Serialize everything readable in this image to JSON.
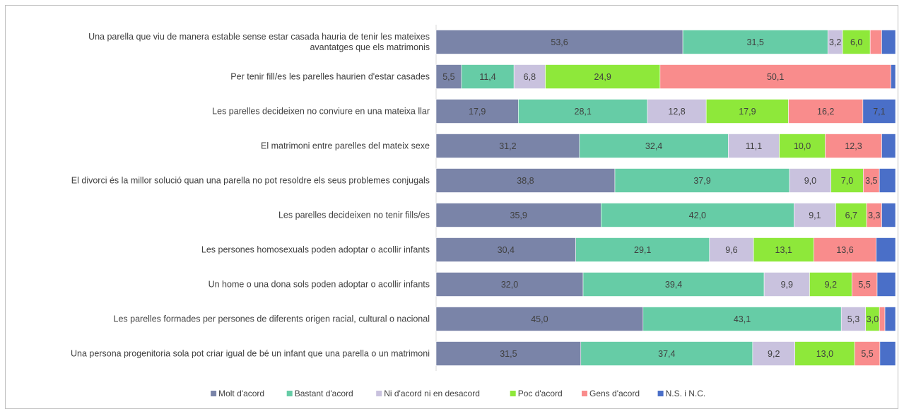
{
  "chart_data": {
    "type": "bar",
    "orientation": "horizontal",
    "stacked": "percent",
    "categories": [
      [
        "Una parella que viu de manera estable sense estar casada hauria de tenir les mateixes",
        "avantatges que els matrimonis"
      ],
      [
        "Per tenir fill/es les parelles haurien d'estar casades"
      ],
      [
        "Les parelles decideixen no conviure en una mateixa llar"
      ],
      [
        "El matrimoni entre parelles del mateix sexe"
      ],
      [
        "El divorci és la millor solució quan una parella no pot resoldre els seus problemes conjugals"
      ],
      [
        "Les parelles decideixen no tenir fills/es"
      ],
      [
        "Les persones homosexuals poden adoptar o acollir infants"
      ],
      [
        "Un home o una dona sols poden adoptar o acollir infants"
      ],
      [
        "Les parelles formades per persones de diferents origen racial, cultural o nacional"
      ],
      [
        "Una persona progenitoria sola pot criar igual de bé un infant que una parella o un matrimoni"
      ]
    ],
    "series": [
      {
        "name": "Molt d'acord",
        "color": "#7a84a8",
        "values": [
          53.6,
          5.5,
          17.9,
          31.2,
          38.8,
          35.9,
          30.4,
          32.0,
          45.0,
          31.5
        ],
        "labels": [
          "53,6",
          "5,5",
          "17,9",
          "31,2",
          "38,8",
          "35,9",
          "30,4",
          "32,0",
          "45,0",
          "31,5"
        ],
        "label_color": "#ffffff"
      },
      {
        "name": "Bastant d'acord",
        "color": "#66cca6",
        "values": [
          31.5,
          11.4,
          28.1,
          32.4,
          37.9,
          42.0,
          29.1,
          39.4,
          43.1,
          37.4
        ],
        "labels": [
          "31,5",
          "11,4",
          "28,1",
          "32,4",
          "37,9",
          "42,0",
          "29,1",
          "39,4",
          "43,1",
          "37,4"
        ],
        "label_color": "#404040"
      },
      {
        "name": "Ni d'acord ni en desacord",
        "color": "#c9c2de",
        "values": [
          3.2,
          6.8,
          12.8,
          11.1,
          9.0,
          9.1,
          9.6,
          9.9,
          5.3,
          9.2
        ],
        "labels": [
          "3,2",
          "6,8",
          "12,8",
          "11,1",
          "9,0",
          "9,1",
          "9,6",
          "9,9",
          "5,3",
          "9,2"
        ],
        "label_color": "#404040"
      },
      {
        "name": "Poc d'acord",
        "color": "#8ee83a",
        "values": [
          6.0,
          24.9,
          17.9,
          10.0,
          7.0,
          6.7,
          13.1,
          9.2,
          3.0,
          13.0
        ],
        "labels": [
          "6,0",
          "24,9",
          "17,9",
          "10,0",
          "7,0",
          "6,7",
          "13,1",
          "9,2",
          "3,0",
          "13,0"
        ],
        "label_color": "#404040"
      },
      {
        "name": "Gens d'acord",
        "color": "#f98c8c",
        "values": [
          2.5,
          50.1,
          16.2,
          12.3,
          3.5,
          3.3,
          13.6,
          5.5,
          1.2,
          5.5
        ],
        "labels": [
          "",
          "50,1",
          "16,2",
          "12,3",
          "3,5",
          "3,3",
          "13,6",
          "5,5",
          "",
          "5,5"
        ],
        "label_color": "#404040"
      },
      {
        "name": "N.S. i N.C.",
        "color": "#4a6fc8",
        "values": [
          3.0,
          1.0,
          7.1,
          3.0,
          3.5,
          3.0,
          4.2,
          4.0,
          2.3,
          3.4
        ],
        "labels": [
          "",
          "",
          "7,1",
          "",
          "",
          "",
          "",
          "",
          "",
          ""
        ],
        "label_color": "#404040"
      }
    ],
    "xlim": [
      0,
      100
    ],
    "grid": false,
    "legend_position": "bottom"
  }
}
